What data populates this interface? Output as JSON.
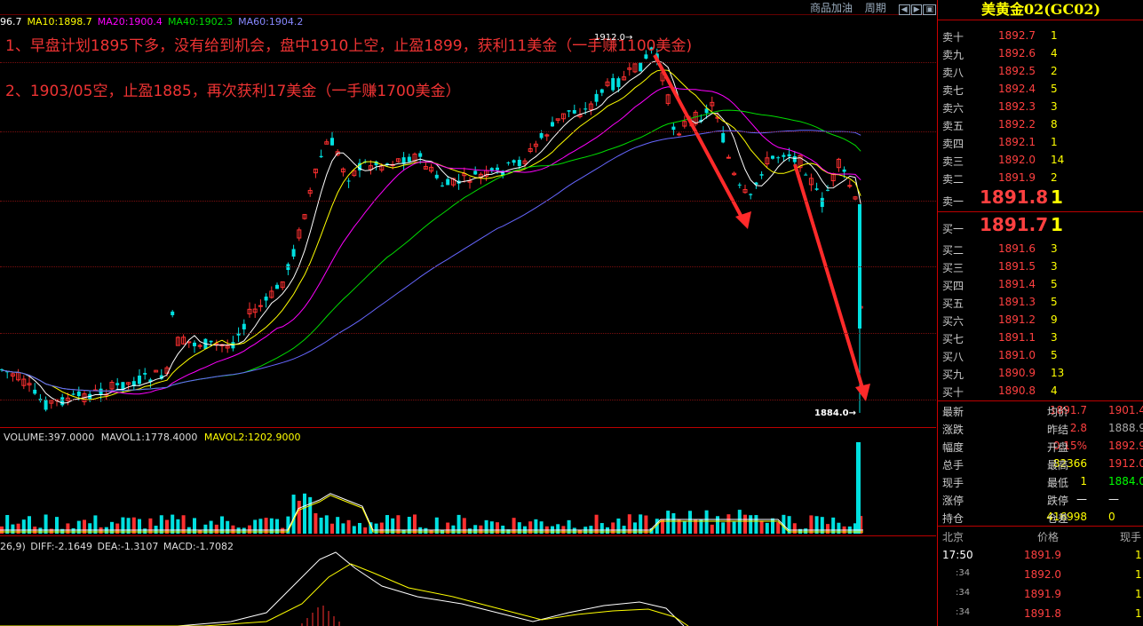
{
  "header": {
    "ma_prefix": "96.7",
    "ma10": "MA10:1898.7",
    "ma20": "MA20:1900.4",
    "ma40": "MA40:1902.3",
    "ma60": "MA60:1904.2",
    "menu": [
      "商品加油",
      "周期"
    ],
    "menu_icons": [
      "prev-icon",
      "next-icon",
      "window-icon"
    ]
  },
  "annotations": {
    "line1": "1、早盘计划1895下多，没有给到机会，盘中1910上空，止盈1899，获利11美金（一手赚1100美金)",
    "line2": "2、1903/05空，止盈1885，再次获利17美金（一手赚1700美金）"
  },
  "chart_labels": {
    "high": "1912.0→",
    "low": "1884.0→"
  },
  "volume_header": {
    "volume": "VOLUME:397.0000",
    "mavol1": "MAVOL1:1778.4000",
    "mavol2": "MAVOL2:1202.9000"
  },
  "macd_header": {
    "params": "26,9)",
    "diff": "DIFF:-2.1649",
    "dea": "DEA:-1.3107",
    "macd": "MACD:-1.7082"
  },
  "colors": {
    "up": "#ff3030",
    "down": "#00e0e0",
    "ma5": "#ffffff",
    "ma10": "#ffff00",
    "ma20": "#ff00ff",
    "ma40": "#00dd00",
    "ma60": "#6666ff"
  },
  "quote": {
    "title": "美黄金02(GC02)",
    "asks": [
      {
        "label": "卖十",
        "price": "1892.7",
        "vol": "1"
      },
      {
        "label": "卖九",
        "price": "1892.6",
        "vol": "4"
      },
      {
        "label": "卖八",
        "price": "1892.5",
        "vol": "2"
      },
      {
        "label": "卖七",
        "price": "1892.4",
        "vol": "5"
      },
      {
        "label": "卖六",
        "price": "1892.3",
        "vol": "3"
      },
      {
        "label": "卖五",
        "price": "1892.2",
        "vol": "8"
      },
      {
        "label": "卖四",
        "price": "1892.1",
        "vol": "1"
      },
      {
        "label": "卖三",
        "price": "1892.0",
        "vol": "14"
      },
      {
        "label": "卖二",
        "price": "1891.9",
        "vol": "2"
      }
    ],
    "ask1": {
      "label": "卖一",
      "price": "1891.8",
      "vol": "1"
    },
    "bid1": {
      "label": "买一",
      "price": "1891.7",
      "vol": "1"
    },
    "bids": [
      {
        "label": "买二",
        "price": "1891.6",
        "vol": "3"
      },
      {
        "label": "买三",
        "price": "1891.5",
        "vol": "3"
      },
      {
        "label": "买四",
        "price": "1891.4",
        "vol": "5"
      },
      {
        "label": "买五",
        "price": "1891.3",
        "vol": "5"
      },
      {
        "label": "买六",
        "price": "1891.2",
        "vol": "9"
      },
      {
        "label": "买七",
        "price": "1891.1",
        "vol": "3"
      },
      {
        "label": "买八",
        "price": "1891.0",
        "vol": "5"
      },
      {
        "label": "买九",
        "price": "1890.9",
        "vol": "13"
      },
      {
        "label": "买十",
        "price": "1890.8",
        "vol": "4"
      }
    ],
    "stats": [
      {
        "l1": "最新",
        "v1": "1891.7",
        "c1": "red",
        "l2": "均价",
        "v2": "1901.4",
        "c2": "red"
      },
      {
        "l1": "涨跌",
        "v1": "2.8",
        "c1": "red",
        "l2": "昨结",
        "v2": "1888.9",
        "c2": "grey"
      },
      {
        "l1": "幅度",
        "v1": "0.15%",
        "c1": "red",
        "l2": "开盘",
        "v2": "1892.9",
        "c2": "red"
      },
      {
        "l1": "总手",
        "v1": "82366",
        "c1": "yellow",
        "l2": "最高",
        "v2": "1912.0",
        "c2": "red"
      },
      {
        "l1": "现手",
        "v1": "1",
        "c1": "yellow",
        "l2": "最低",
        "v2": "1884.0",
        "c2": "green"
      },
      {
        "l1": "涨停",
        "v1": "—",
        "c1": "white",
        "l2": "跌停",
        "v2": "—",
        "c2": "white"
      },
      {
        "l1": "持仓",
        "v1": "416998",
        "c1": "yellow",
        "l2": "仓差",
        "v2": "0",
        "c2": "yellow"
      }
    ],
    "ticks_header": {
      "a": "北京",
      "b": "价格",
      "c": "现手"
    },
    "ticks": [
      {
        "time": "17:50",
        "price": "1891.9",
        "vol": "1"
      },
      {
        "time": ":34",
        "price": "1892.0",
        "vol": "1"
      },
      {
        "time": ":34",
        "price": "1891.9",
        "vol": "1"
      },
      {
        "time": ":34",
        "price": "1891.8",
        "vol": "1"
      }
    ]
  }
}
